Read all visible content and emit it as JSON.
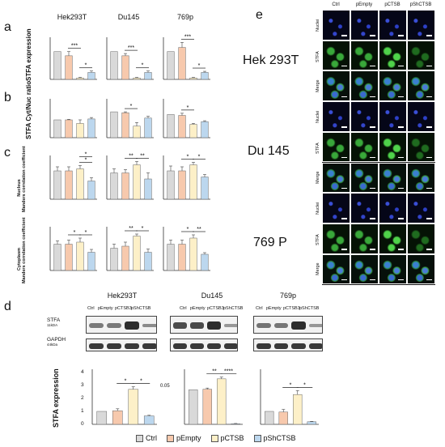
{
  "panels": {
    "a": "a",
    "b": "b",
    "c": "c",
    "d": "d",
    "e": "e"
  },
  "cell_lines_abc": [
    "Hek293T",
    "Du145",
    "769p"
  ],
  "ylabels": {
    "a": "STFA expression",
    "b": "STFA Cyt/Nuc ratio",
    "c_nucleus": "Nucleus",
    "c_nucleus_sub": "Manders correlation coefficient",
    "c_cyto": "Cytoplasm",
    "c_cyto_sub": "Manders correlation coefficient",
    "d": "STFA expression"
  },
  "legend": {
    "items": [
      {
        "label": "Ctrl",
        "color": "#d9d9d9"
      },
      {
        "label": "pEmpty",
        "color": "#f7c9ad"
      },
      {
        "label": "pCTSB",
        "color": "#fdf0c8"
      },
      {
        "label": "pShCTSB",
        "color": "#bcd7ee"
      }
    ]
  },
  "panel_e": {
    "columns": [
      "Ctrl",
      "pEmpty",
      "pCTSB",
      "pShCTSB"
    ],
    "groups": [
      {
        "name": "Hek 293T",
        "rows": [
          "Nuclei",
          "STFA",
          "Merge"
        ]
      },
      {
        "name": "Du 145",
        "rows": [
          "Nuclei",
          "STFA",
          "Merge"
        ]
      },
      {
        "name": "769 P",
        "rows": [
          "Nuclei",
          "STFA",
          "Merge"
        ]
      }
    ]
  },
  "panel_d": {
    "cell_lines": [
      "Hek293T",
      "Du145",
      "769p"
    ],
    "lanes": [
      "Ctrl",
      "pEmpty",
      "pCTSB3",
      "pShCTSB"
    ],
    "blots": [
      {
        "name": "STFA",
        "size": "11kDA"
      },
      {
        "name": "GAPDH",
        "size": "44kDa"
      }
    ],
    "break_label": "0.05"
  },
  "chart_data": [
    {
      "type": "bar",
      "panel": "a",
      "subplot": "Hek293T",
      "categories": [
        "Ctrl",
        "pEmpty",
        "pCTSB",
        "pShCTSB"
      ],
      "values": [
        1.0,
        0.85,
        0.05,
        0.25
      ],
      "errors": [
        0.0,
        0.15,
        0.02,
        0.05
      ],
      "ylim": [
        0,
        1.4
      ],
      "yticks": [],
      "sig": [
        {
          "from": 1,
          "to": 2,
          "label": "***"
        },
        {
          "from": 2,
          "to": 3,
          "label": "*"
        }
      ]
    },
    {
      "type": "bar",
      "panel": "a",
      "subplot": "Du145",
      "categories": [
        "Ctrl",
        "pEmpty",
        "pCTSB",
        "pShCTSB"
      ],
      "values": [
        1.0,
        0.85,
        0.05,
        0.25
      ],
      "errors": [
        0.0,
        0.08,
        0.02,
        0.05
      ],
      "ylim": [
        0,
        1.4
      ],
      "yticks": [],
      "sig": [
        {
          "from": 1,
          "to": 2,
          "label": "***"
        },
        {
          "from": 2,
          "to": 3,
          "label": "*"
        }
      ]
    },
    {
      "type": "bar",
      "panel": "a",
      "subplot": "769p",
      "categories": [
        "Ctrl",
        "pEmpty",
        "pCTSB",
        "pShCTSB"
      ],
      "values": [
        1.0,
        1.15,
        0.05,
        0.25
      ],
      "errors": [
        0.0,
        0.18,
        0.02,
        0.04
      ],
      "ylim": [
        0,
        1.4
      ],
      "yticks": [],
      "sig": [
        {
          "from": 1,
          "to": 2,
          "label": "***"
        },
        {
          "from": 2,
          "to": 3,
          "label": "*"
        }
      ]
    },
    {
      "type": "bar",
      "panel": "b",
      "subplot": "Hek293T",
      "categories": [
        "Ctrl",
        "pEmpty",
        "pCTSB",
        "pShCTSB"
      ],
      "values": [
        1.0,
        1.0,
        0.8,
        1.05
      ],
      "errors": [
        0.0,
        0.03,
        0.2,
        0.08
      ],
      "ylim": [
        0,
        2
      ],
      "yticks": [],
      "sig": []
    },
    {
      "type": "bar",
      "panel": "b",
      "subplot": "Du145",
      "categories": [
        "Ctrl",
        "pEmpty",
        "pCTSB",
        "pShCTSB"
      ],
      "values": [
        1.45,
        1.4,
        0.65,
        1.1
      ],
      "errors": [
        0.0,
        0.05,
        0.2,
        0.1
      ],
      "ylim": [
        0,
        2
      ],
      "yticks": [],
      "sig": [
        {
          "from": 1,
          "to": 2,
          "label": "*"
        }
      ]
    },
    {
      "type": "bar",
      "panel": "b",
      "subplot": "769p",
      "categories": [
        "Ctrl",
        "pEmpty",
        "pCTSB",
        "pShCTSB"
      ],
      "values": [
        1.3,
        1.25,
        0.75,
        0.9
      ],
      "errors": [
        0.0,
        0.12,
        0.05,
        0.05
      ],
      "ylim": [
        0,
        2
      ],
      "yticks": [],
      "sig": [
        {
          "from": 1,
          "to": 2,
          "label": "*"
        }
      ]
    },
    {
      "type": "bar",
      "panel": "c-nucleus",
      "subplot": "Hek293T",
      "categories": [
        "Ctrl",
        "pEmpty",
        "pCTSB",
        "pShCTSB"
      ],
      "values": [
        0.7,
        0.7,
        0.75,
        0.45
      ],
      "errors": [
        0.1,
        0.1,
        0.08,
        0.08
      ],
      "ylim": [
        0,
        1
      ],
      "yticks": [],
      "sig": [
        {
          "from": 2,
          "to": 3,
          "label": "*"
        },
        {
          "from": 2,
          "to": 3,
          "label": "*",
          "level": 2
        }
      ]
    },
    {
      "type": "bar",
      "panel": "c-nucleus",
      "subplot": "Du145",
      "categories": [
        "Ctrl",
        "pEmpty",
        "pCTSB",
        "pShCTSB"
      ],
      "values": [
        0.65,
        0.65,
        0.85,
        0.5
      ],
      "errors": [
        0.1,
        0.08,
        0.08,
        0.15
      ],
      "ylim": [
        0,
        1
      ],
      "yticks": [],
      "sig": [
        {
          "from": 1,
          "to": 2,
          "label": "**"
        },
        {
          "from": 2,
          "to": 3,
          "label": "**"
        }
      ]
    },
    {
      "type": "bar",
      "panel": "c-nucleus",
      "subplot": "769p",
      "categories": [
        "Ctrl",
        "pEmpty",
        "pCTSB",
        "pShCTSB"
      ],
      "values": [
        0.7,
        0.7,
        0.85,
        0.55
      ],
      "errors": [
        0.12,
        0.1,
        0.06,
        0.06
      ],
      "ylim": [
        0,
        1
      ],
      "yticks": [],
      "sig": [
        {
          "from": 1,
          "to": 2,
          "label": "*"
        },
        {
          "from": 2,
          "to": 3,
          "label": "*"
        }
      ]
    },
    {
      "type": "bar",
      "panel": "c-cyto",
      "subplot": "Hek293T",
      "categories": [
        "Ctrl",
        "pEmpty",
        "pCTSB",
        "pShCTSB"
      ],
      "values": [
        0.65,
        0.65,
        0.7,
        0.45
      ],
      "errors": [
        0.08,
        0.1,
        0.1,
        0.07
      ],
      "ylim": [
        0,
        1
      ],
      "yticks": [],
      "sig": [
        {
          "from": 1,
          "to": 2,
          "label": "*"
        },
        {
          "from": 2,
          "to": 3,
          "label": "*"
        }
      ]
    },
    {
      "type": "bar",
      "panel": "c-cyto",
      "subplot": "Du145",
      "categories": [
        "Ctrl",
        "pEmpty",
        "pCTSB",
        "pShCTSB"
      ],
      "values": [
        0.55,
        0.6,
        0.85,
        0.45
      ],
      "errors": [
        0.1,
        0.1,
        0.05,
        0.08
      ],
      "ylim": [
        0,
        1
      ],
      "yticks": [],
      "sig": [
        {
          "from": 1,
          "to": 2,
          "label": "**"
        },
        {
          "from": 2,
          "to": 3,
          "label": "*"
        }
      ]
    },
    {
      "type": "bar",
      "panel": "c-cyto",
      "subplot": "769p",
      "categories": [
        "Ctrl",
        "pEmpty",
        "pCTSB",
        "pShCTSB"
      ],
      "values": [
        0.65,
        0.65,
        0.8,
        0.4
      ],
      "errors": [
        0.1,
        0.1,
        0.08,
        0.04
      ],
      "ylim": [
        0,
        1
      ],
      "yticks": [],
      "sig": [
        {
          "from": 1,
          "to": 2,
          "label": "*"
        },
        {
          "from": 2,
          "to": 3,
          "label": "**"
        }
      ]
    },
    {
      "type": "bar",
      "panel": "d",
      "subplot": "Hek293T",
      "categories": [
        "Ctrl",
        "pEmpty",
        "pCTSB",
        "pShCTSB"
      ],
      "values": [
        1.0,
        1.05,
        2.7,
        0.65
      ],
      "errors": [
        0.0,
        0.15,
        0.2,
        0.05
      ],
      "ylim": [
        0,
        4
      ],
      "yticks": [
        0,
        1,
        2,
        3,
        4
      ],
      "sig": [
        {
          "from": 1,
          "to": 2,
          "label": "*"
        },
        {
          "from": 2,
          "to": 3,
          "label": "*"
        }
      ]
    },
    {
      "type": "bar",
      "panel": "d",
      "subplot": "Du145",
      "categories": [
        "Ctrl",
        "pEmpty",
        "pCTSB",
        "pShCTSB"
      ],
      "values": [
        0.06,
        0.061,
        0.079,
        0.001
      ],
      "errors": [
        0.0,
        0.002,
        0.003,
        0.0005
      ],
      "ylim": [
        0,
        0.09
      ],
      "yticks": [],
      "sig": [
        {
          "from": 1,
          "to": 2,
          "label": "**"
        },
        {
          "from": 2,
          "to": 3,
          "label": "****"
        }
      ]
    },
    {
      "type": "bar",
      "panel": "d",
      "subplot": "769p",
      "categories": [
        "Ctrl",
        "pEmpty",
        "pCTSB",
        "pShCTSB"
      ],
      "values": [
        1.0,
        0.95,
        2.3,
        0.2
      ],
      "errors": [
        0.0,
        0.2,
        0.3,
        0.03
      ],
      "ylim": [
        0,
        4
      ],
      "yticks": [],
      "sig": [
        {
          "from": 1,
          "to": 2,
          "label": "*"
        },
        {
          "from": 2,
          "to": 3,
          "label": "*"
        }
      ]
    }
  ],
  "colors": {
    "Ctrl": "#d9d9d9",
    "pEmpty": "#f7c9ad",
    "pCTSB": "#fdf0c8",
    "pShCTSB": "#bcd7ee"
  }
}
